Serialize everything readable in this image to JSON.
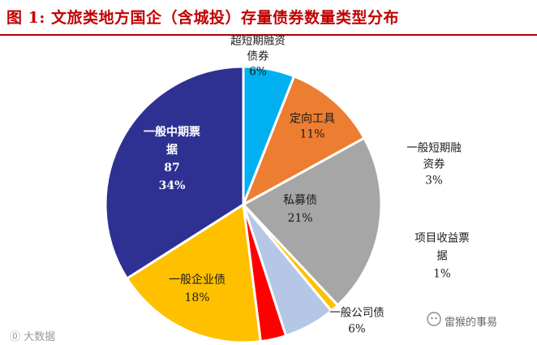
{
  "title": "图 1:  文旅类地方国企（含城投）存量债券数量类型分布",
  "chart_data": {
    "type": "pie",
    "title": "图 1:  文旅类地方国企（含城投）存量债券数量类型分布",
    "slices": [
      {
        "label": [
          "超短期融资",
          "债券"
        ],
        "pct": "6%",
        "value": 6,
        "color": "#00b0f0",
        "text_color": "#1a1a1a"
      },
      {
        "label": [
          "定向工具"
        ],
        "pct": "11%",
        "value": 11,
        "color": "#ed7d31",
        "text_color": "#1a1a1a"
      },
      {
        "label": [
          "私募债"
        ],
        "pct": "21%",
        "value": 21,
        "color": "#a6a6a6",
        "text_color": "#1a1a1a"
      },
      {
        "label": [
          "项目收益票",
          "据"
        ],
        "pct": "1%",
        "value": 1,
        "color": "#ffc000",
        "text_color": "#1a1a1a"
      },
      {
        "label": [
          "一般公司债"
        ],
        "pct": "6%",
        "value": 6,
        "color": "#b4c7e7",
        "text_color": "#1a1a1a"
      },
      {
        "label": [
          "一般短期融",
          "资券"
        ],
        "pct": "3%",
        "value": 3,
        "color": "#ff0000",
        "text_color": "#1a1a1a"
      },
      {
        "label": [
          "一般企业债"
        ],
        "pct": "18%",
        "value": 18,
        "color": "#ffc000",
        "text_color": "#1a1a1a"
      },
      {
        "label": [
          "一般中期票",
          "据",
          "87"
        ],
        "pct": "34%",
        "value": 34,
        "color": "#2e3192",
        "text_color": "#ffffff"
      }
    ]
  },
  "watermarks": {
    "left": "⓪ 大数据",
    "right": "雷猴的事易"
  }
}
